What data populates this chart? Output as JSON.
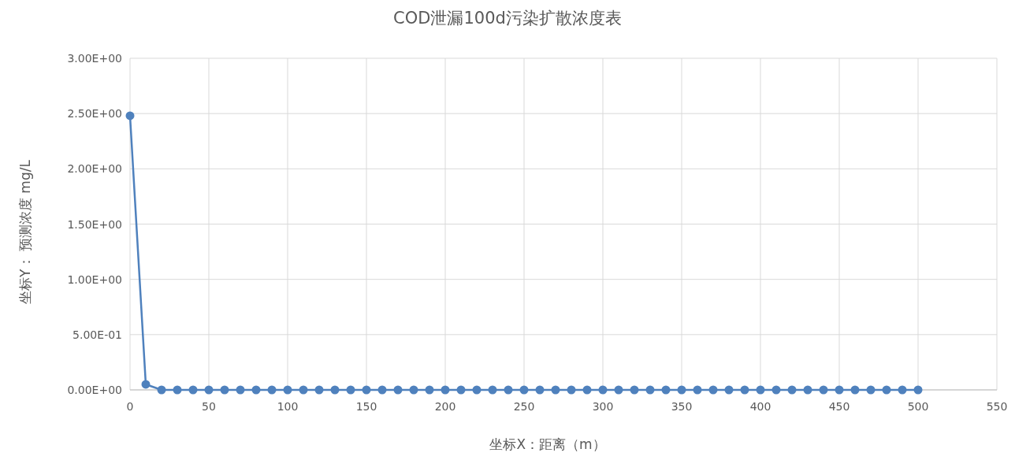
{
  "chart_data": {
    "type": "line",
    "title": "COD泄漏100d污染扩散浓度表",
    "xlabel": "坐标X：距离（m）",
    "ylabel": "坐标Y： 预测浓度 mg/L",
    "x": [
      0,
      10,
      20,
      30,
      40,
      50,
      60,
      70,
      80,
      90,
      100,
      110,
      120,
      130,
      140,
      150,
      160,
      170,
      180,
      190,
      200,
      210,
      220,
      230,
      240,
      250,
      260,
      270,
      280,
      290,
      300,
      310,
      320,
      330,
      340,
      350,
      360,
      370,
      380,
      390,
      400,
      410,
      420,
      430,
      440,
      450,
      460,
      470,
      480,
      490,
      500
    ],
    "series": [
      {
        "color": "#4f81bd",
        "values": [
          2.48,
          0.05,
          0,
          0,
          0,
          0,
          0,
          0,
          0,
          0,
          0,
          0,
          0,
          0,
          0,
          0,
          0,
          0,
          0,
          0,
          0,
          0,
          0,
          0,
          0,
          0,
          0,
          0,
          0,
          0,
          0,
          0,
          0,
          0,
          0,
          0,
          0,
          0,
          0,
          0,
          0,
          0,
          0,
          0,
          0,
          0,
          0,
          0,
          0,
          0,
          0
        ]
      }
    ],
    "xlim": [
      0,
      550
    ],
    "xticks": [
      0,
      50,
      100,
      150,
      200,
      250,
      300,
      350,
      400,
      450,
      500,
      550
    ],
    "ylim": [
      0,
      3
    ],
    "yticks": [
      {
        "value": 0,
        "label": "0.00E+00"
      },
      {
        "value": 0.5,
        "label": "5.00E-01"
      },
      {
        "value": 1,
        "label": "1.00E+00"
      },
      {
        "value": 1.5,
        "label": "1.50E+00"
      },
      {
        "value": 2,
        "label": "2.00E+00"
      },
      {
        "value": 2.5,
        "label": "2.50E+00"
      },
      {
        "value": 3,
        "label": "3.00E+00"
      }
    ],
    "grid": true,
    "marker": "circle",
    "line_style": "solid"
  }
}
